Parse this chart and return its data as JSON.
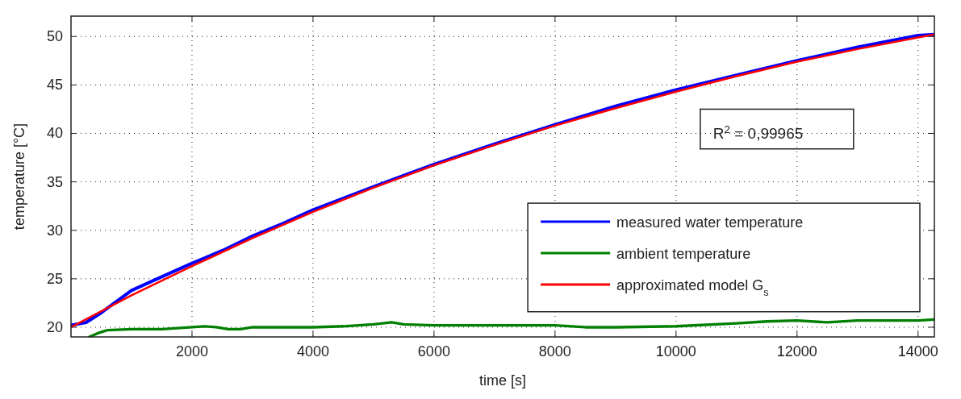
{
  "chart_data": {
    "type": "line",
    "xlabel": "time [s]",
    "ylabel": "temperature [°C]",
    "xlim": [
      0,
      14270
    ],
    "ylim": [
      19,
      52.1
    ],
    "xticks": [
      2000,
      4000,
      6000,
      8000,
      10000,
      12000,
      14000
    ],
    "yticks": [
      20,
      25,
      30,
      35,
      40,
      45,
      50
    ],
    "grid": true,
    "legend": "right",
    "line_style": "solid",
    "annotations": [
      "R$^{2}$ = 0,99965"
    ],
    "series": [
      {
        "name": "measured water temperature",
        "color": "#0000ff",
        "x": [
          0,
          250,
          500,
          1000,
          1500,
          2000,
          2500,
          3000,
          3500,
          4000,
          5000,
          6000,
          7000,
          8000,
          9000,
          10000,
          11000,
          12000,
          13000,
          14000,
          14270
        ],
        "values": [
          20.2,
          20.5,
          21.5,
          23.8,
          25.2,
          26.6,
          27.9,
          29.4,
          30.7,
          32.1,
          34.5,
          36.8,
          38.9,
          40.9,
          42.8,
          44.5,
          46.0,
          47.5,
          48.9,
          50.1,
          50.2
        ]
      },
      {
        "name": "ambient temperature",
        "color": "#008000",
        "x": [
          300,
          450,
          600,
          1000,
          1500,
          2000,
          2200,
          2400,
          2600,
          2800,
          3000,
          4000,
          4500,
          5000,
          5300,
          5500,
          6000,
          7000,
          8000,
          8500,
          9000,
          10000,
          11000,
          11500,
          12000,
          12500,
          13000,
          14000,
          14270
        ],
        "values": [
          19.0,
          19.4,
          19.7,
          19.8,
          19.8,
          20.0,
          20.1,
          20.0,
          19.8,
          19.8,
          20.0,
          20.0,
          20.1,
          20.3,
          20.5,
          20.3,
          20.2,
          20.2,
          20.2,
          20.0,
          20.0,
          20.1,
          20.4,
          20.6,
          20.7,
          20.5,
          20.7,
          20.7,
          20.8
        ]
      },
      {
        "name": "approximated model G$_{s}$",
        "color": "#ff0000",
        "x": [
          0,
          1000,
          2000,
          3000,
          4000,
          5000,
          6000,
          7000,
          8000,
          9000,
          10000,
          11000,
          12000,
          13000,
          14000,
          14270
        ],
        "values": [
          20.0,
          23.3,
          26.3,
          29.2,
          31.9,
          34.4,
          36.7,
          38.8,
          40.8,
          42.6,
          44.3,
          45.9,
          47.4,
          48.7,
          49.9,
          50.2
        ]
      }
    ]
  }
}
